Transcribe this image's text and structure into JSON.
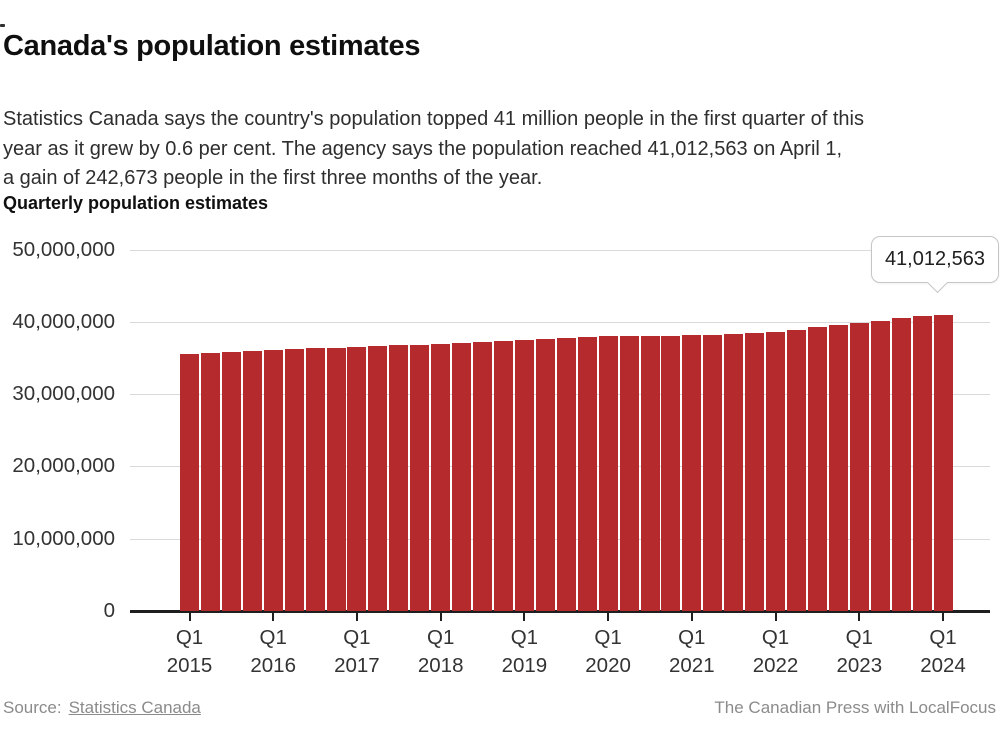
{
  "header": {
    "title": "Canada's population estimates",
    "subtitle_lines": [
      "Statistics Canada says the country's population topped 41 million people in the first quarter of this",
      "year as it grew by 0.6 per cent. The agency says the population reached 41,012,563 on April 1,",
      "a gain of 242,673 people in the first three months of the year."
    ]
  },
  "chart": {
    "heading": "Quarterly population estimates"
  },
  "chart_data": {
    "type": "bar",
    "title": "Quarterly population estimates",
    "bar_color": "#b52a2d",
    "grid": "horizontal",
    "xlabel": "",
    "ylabel": "",
    "ylim": [
      0,
      50000000
    ],
    "y_ticks": [
      0,
      10000000,
      20000000,
      30000000,
      40000000,
      50000000
    ],
    "y_tick_labels": [
      "0",
      "10,000,000",
      "20,000,000",
      "30,000,000",
      "40,000,000",
      "50,000,000"
    ],
    "x": [
      "Q1 2015",
      "Q2 2015",
      "Q3 2015",
      "Q4 2015",
      "Q1 2016",
      "Q2 2016",
      "Q3 2016",
      "Q4 2016",
      "Q1 2017",
      "Q2 2017",
      "Q3 2017",
      "Q4 2017",
      "Q1 2018",
      "Q2 2018",
      "Q3 2018",
      "Q4 2018",
      "Q1 2019",
      "Q2 2019",
      "Q3 2019",
      "Q4 2019",
      "Q1 2020",
      "Q2 2020",
      "Q3 2020",
      "Q4 2020",
      "Q1 2021",
      "Q2 2021",
      "Q3 2021",
      "Q4 2021",
      "Q1 2022",
      "Q2 2022",
      "Q3 2022",
      "Q4 2022",
      "Q1 2023",
      "Q2 2023",
      "Q3 2023",
      "Q4 2023",
      "Q1 2024"
    ],
    "values": [
      35610000,
      35700000,
      35830000,
      35900000,
      36050000,
      36190000,
      36330000,
      36440000,
      36540000,
      36650000,
      36760000,
      36850000,
      36960000,
      37070000,
      37210000,
      37310000,
      37430000,
      37600000,
      37780000,
      37900000,
      37980000,
      38010000,
      38030000,
      38050000,
      38130000,
      38250000,
      38360000,
      38450000,
      38650000,
      38930000,
      39290000,
      39570000,
      39860000,
      40100000,
      40530000,
      40769890,
      41012563
    ],
    "x_tick_labels": [
      {
        "line1": "Q1",
        "line2": "2015"
      },
      {
        "line1": "Q1",
        "line2": "2016"
      },
      {
        "line1": "Q1",
        "line2": "2017"
      },
      {
        "line1": "Q1",
        "line2": "2018"
      },
      {
        "line1": "Q1",
        "line2": "2019"
      },
      {
        "line1": "Q1",
        "line2": "2020"
      },
      {
        "line1": "Q1",
        "line2": "2021"
      },
      {
        "line1": "Q1",
        "line2": "2022"
      },
      {
        "line1": "Q1",
        "line2": "2023"
      },
      {
        "line1": "Q1",
        "line2": "2024"
      }
    ],
    "annotation": {
      "text": "41,012,563",
      "target_label": "Q1 2024"
    }
  },
  "footer": {
    "source_label": "Source:",
    "source_link": "Statistics Canada",
    "credit": "The Canadian Press with LocalFocus"
  }
}
